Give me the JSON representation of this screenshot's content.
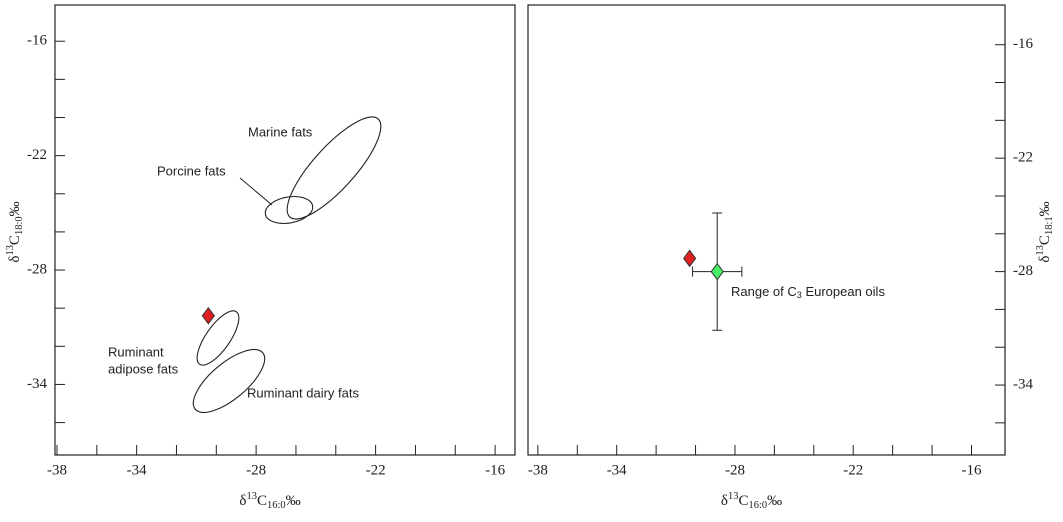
{
  "chart_data": [
    {
      "type": "scatter",
      "xlim": [
        -38.1,
        -15
      ],
      "xticks": [
        -38,
        -34,
        -28,
        -22,
        -16
      ],
      "xminor": [
        -36,
        -32,
        -30,
        -26,
        -24,
        -20,
        -18
      ],
      "ylim": [
        -37.7,
        -14.1
      ],
      "yticks": [
        -16,
        -22,
        -28,
        -34
      ],
      "yminor": [
        -36,
        -32,
        -30,
        -26,
        -24,
        -20,
        -18
      ],
      "xlabel": [
        "δ",
        "13",
        "C",
        "16:0",
        "‰"
      ],
      "ylabel": [
        "δ",
        "13",
        "C",
        "18:0",
        "‰"
      ],
      "series": [
        {
          "color": "#e02020",
          "x": [
            -30.4
          ],
          "y": [
            -30.4
          ]
        }
      ],
      "regions": [
        "Marine fats",
        "Porcine fats",
        "Ruminant",
        "adipose fats",
        "Ruminant dairy fats"
      ]
    },
    {
      "type": "scatter",
      "xlim": [
        -38.5,
        -14.3
      ],
      "xticks": [
        -38,
        -34,
        -28,
        -22,
        -16
      ],
      "xminor": [
        -36,
        -32,
        -30,
        -26,
        -24,
        -20,
        -18
      ],
      "ylim": [
        -37.7,
        -13.9
      ],
      "yticks": [
        -16,
        -22,
        -28,
        -34
      ],
      "yminor": [
        -36,
        -32,
        -30,
        -26,
        -24,
        -20,
        -18
      ],
      "xlabel": [
        "δ",
        "13",
        "C",
        "16:0",
        "‰"
      ],
      "ylabel": [
        "δ",
        "13",
        "C",
        "18:1",
        "‰"
      ],
      "series": [
        {
          "color": "#e02020",
          "x": [
            -30.3
          ],
          "y": [
            -27.3
          ]
        },
        {
          "color": "#44ee66",
          "x": [
            -28.9
          ],
          "y": [
            -28.0
          ],
          "xerr": [
            1.25
          ],
          "yerr": [
            3.1
          ]
        }
      ],
      "annotation": [
        "Range of C",
        "3",
        " European oils"
      ]
    }
  ]
}
